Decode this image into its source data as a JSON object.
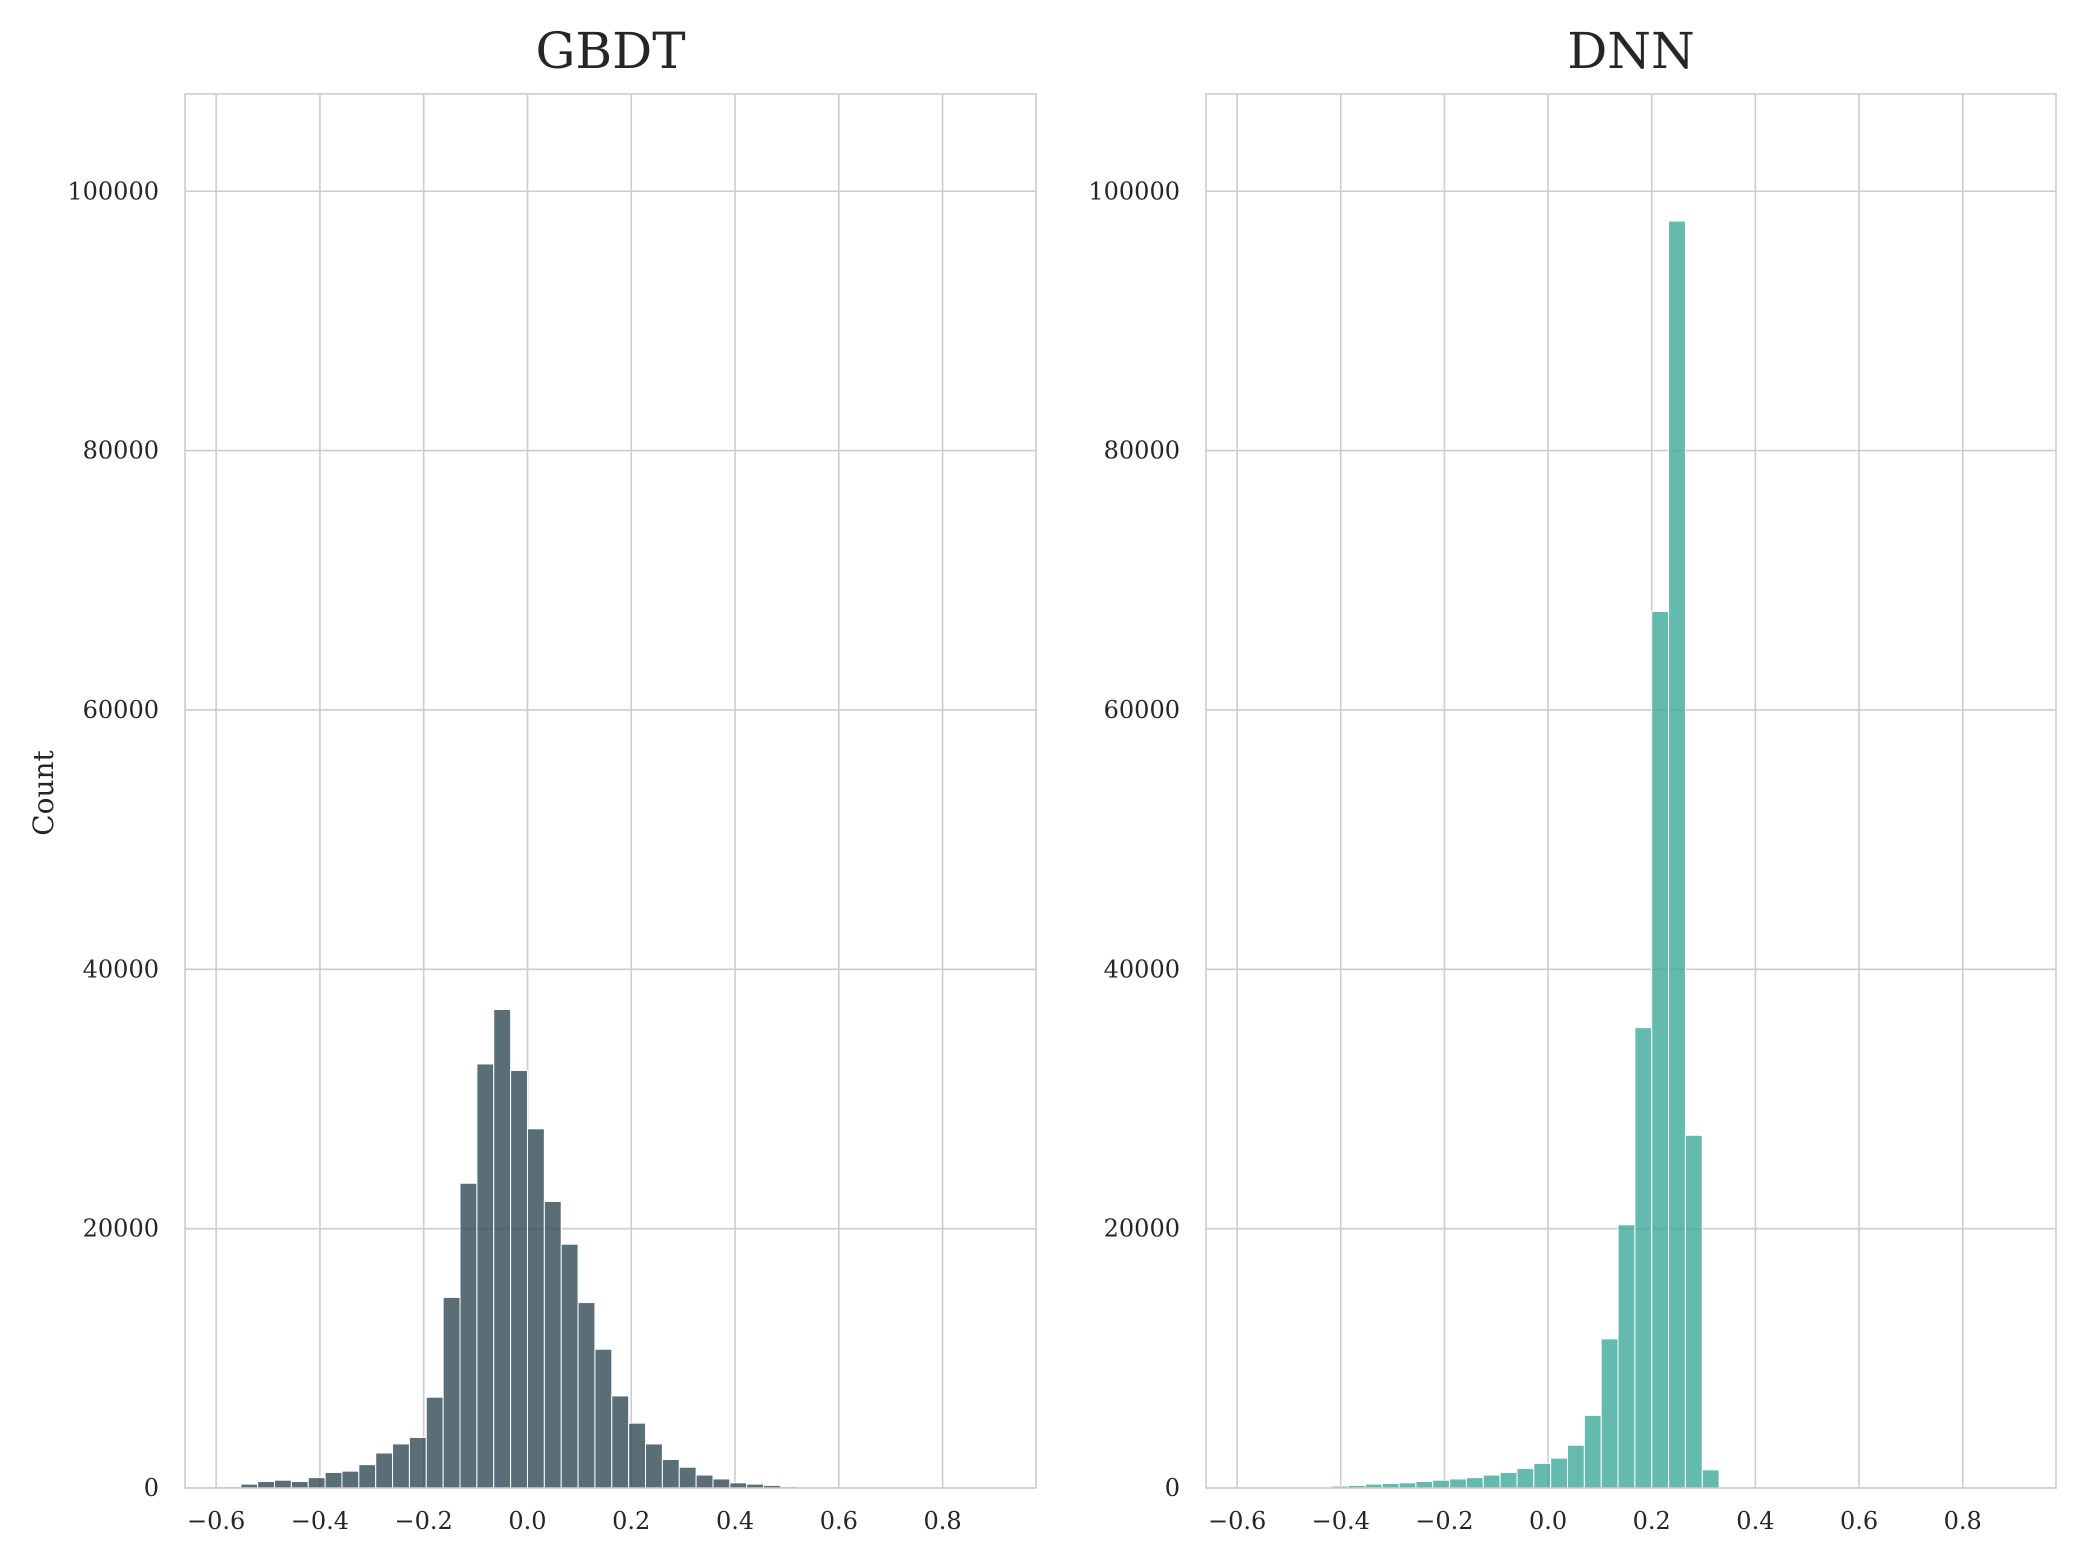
{
  "chart_data": [
    {
      "type": "bar",
      "title": "GBDT",
      "xlabel": "",
      "ylabel": "Count",
      "xlim": [
        -0.66,
        0.98
      ],
      "ylim": [
        0,
        107500
      ],
      "xticks": [
        -0.6,
        -0.4,
        -0.2,
        0.0,
        0.2,
        0.4,
        0.6,
        0.8
      ],
      "xtick_labels": [
        "−0.6",
        "−0.4",
        "−0.2",
        "0.0",
        "0.2",
        "0.4",
        "0.6",
        "0.8"
      ],
      "yticks": [
        0,
        20000,
        40000,
        60000,
        80000,
        100000
      ],
      "ytick_labels": [
        "0",
        "20000",
        "40000",
        "60000",
        "80000",
        "100000"
      ],
      "grid": true,
      "color": "#2f4a55",
      "bin_edges_start": -0.585,
      "bin_width": 0.0325,
      "values": [
        100,
        300,
        500,
        600,
        500,
        800,
        1200,
        1300,
        1800,
        2700,
        3400,
        3900,
        7000,
        14700,
        23500,
        32700,
        36900,
        32200,
        27700,
        22100,
        18800,
        14300,
        10700,
        7100,
        5000,
        3400,
        2200,
        1600,
        1000,
        700,
        400,
        300,
        200,
        100,
        50
      ]
    },
    {
      "type": "bar",
      "title": "DNN",
      "xlabel": "",
      "ylabel": "",
      "xlim": [
        -0.66,
        0.98
      ],
      "ylim": [
        0,
        107500
      ],
      "xticks": [
        -0.6,
        -0.4,
        -0.2,
        0.0,
        0.2,
        0.4,
        0.6,
        0.8
      ],
      "xtick_labels": [
        "−0.6",
        "−0.4",
        "−0.2",
        "0.0",
        "0.2",
        "0.4",
        "0.6",
        "0.8"
      ],
      "yticks": [
        0,
        20000,
        40000,
        60000,
        80000,
        100000
      ],
      "ytick_labels": [
        "0",
        "20000",
        "40000",
        "60000",
        "80000",
        "100000"
      ],
      "grid": true,
      "color": "#3fa99b",
      "bin_edges_start": -0.58,
      "bin_width": 0.0325,
      "values": [
        20,
        30,
        40,
        60,
        80,
        150,
        200,
        300,
        350,
        400,
        500,
        600,
        700,
        800,
        1000,
        1200,
        1500,
        1900,
        2300,
        3300,
        5600,
        11500,
        20300,
        35500,
        67600,
        97700,
        27200,
        1400
      ]
    }
  ]
}
